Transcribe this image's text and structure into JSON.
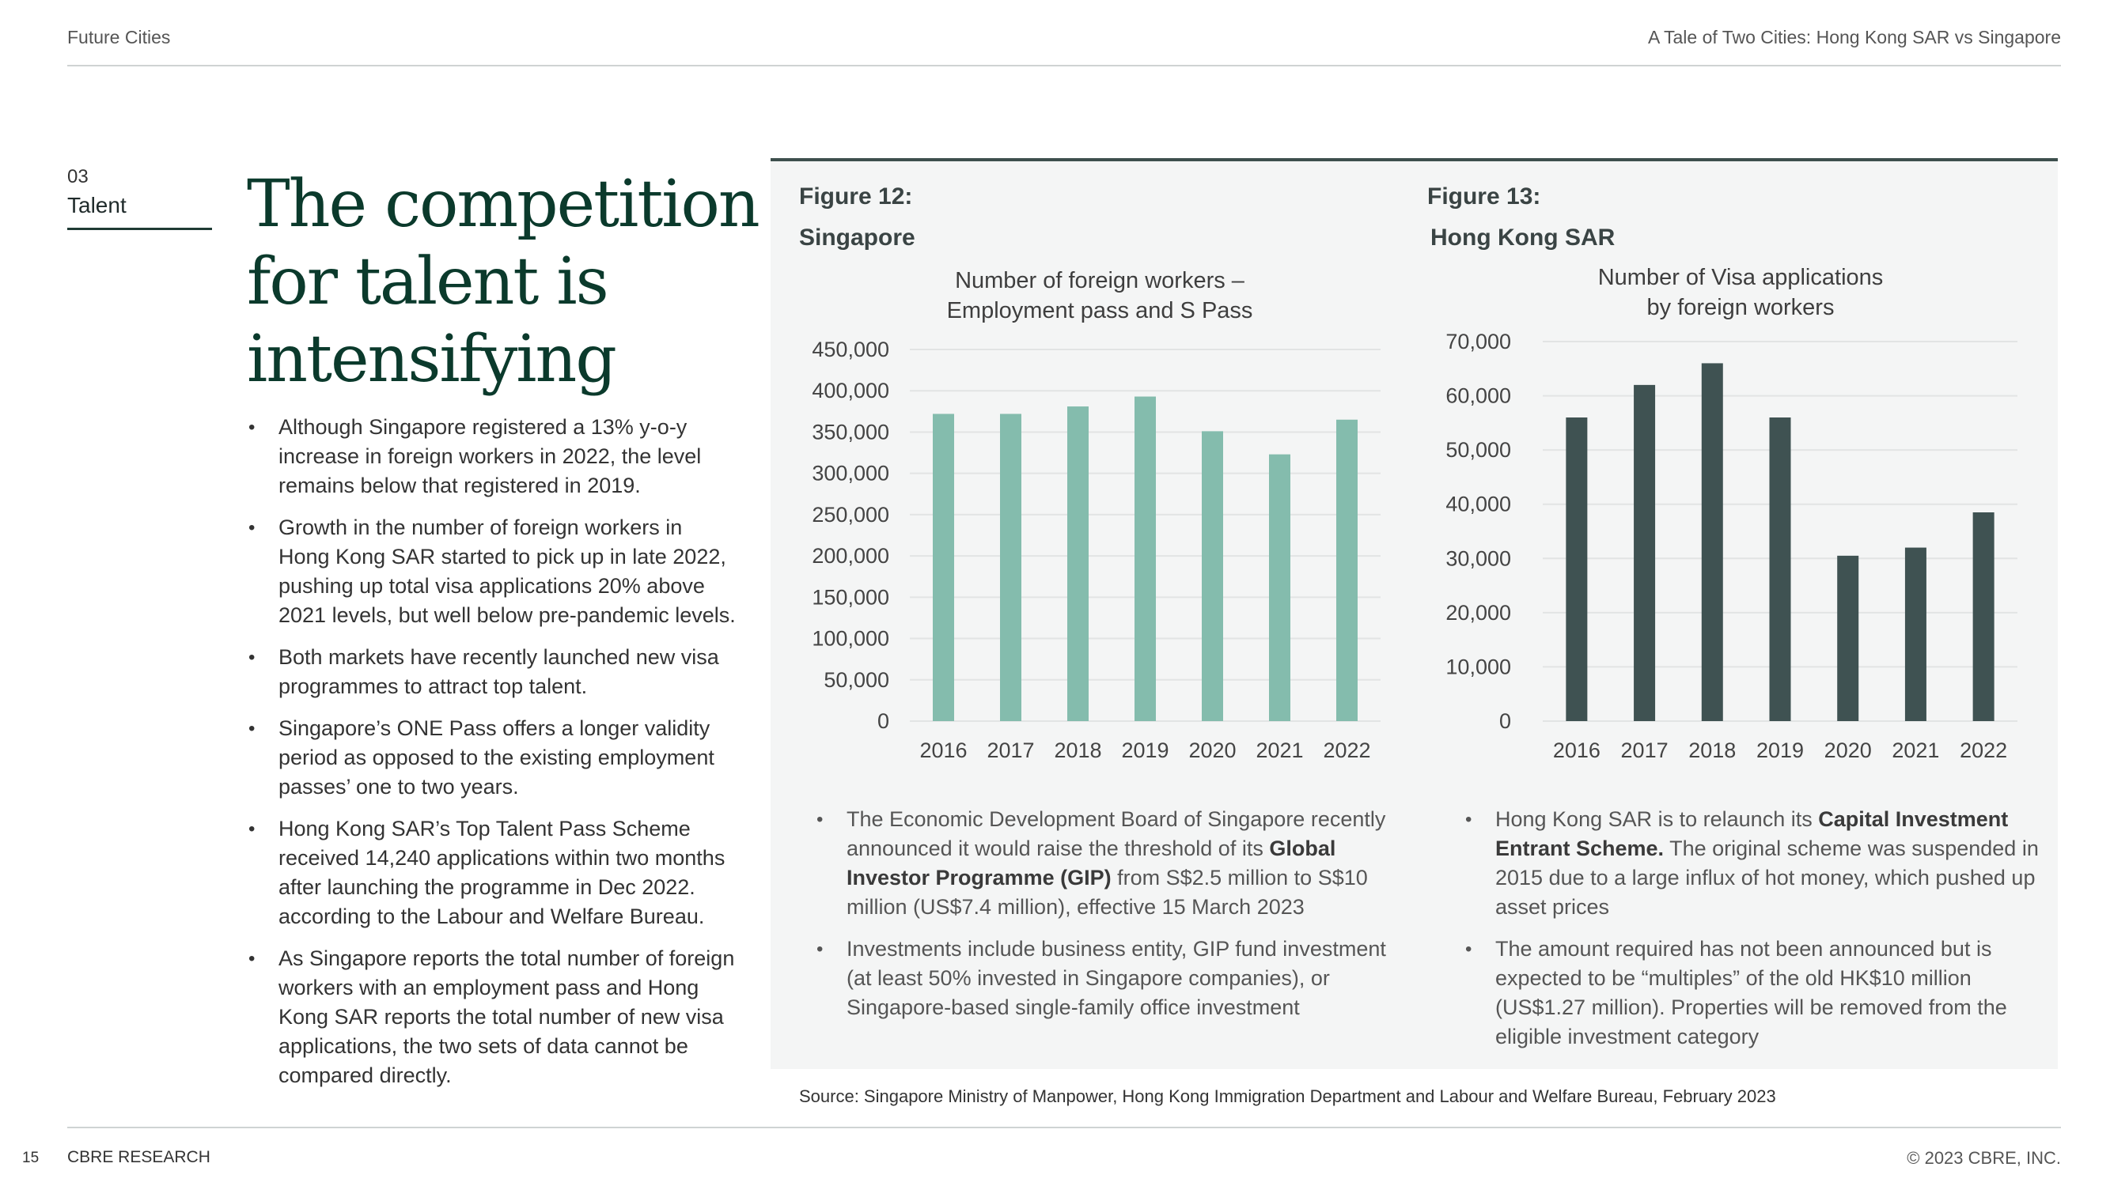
{
  "header": {
    "left": "Future Cities",
    "right": "A Tale of Two Cities: Hong Kong SAR vs Singapore"
  },
  "section": {
    "number": "03",
    "name": "Talent"
  },
  "title_lines": [
    "The competition",
    "for talent is",
    "intensifying"
  ],
  "left_bullets": [
    "Although Singapore registered a 13% y-o-y increase in foreign workers in 2022, the level remains below that registered in 2019.",
    "Growth in the number of foreign workers in Hong Kong SAR started to pick up in late 2022, pushing up total visa applications 20% above 2021 levels, but well below pre-pandemic levels.",
    "Both markets have recently launched new visa programmes to attract top talent.",
    "Singapore’s ONE Pass offers a longer validity period as opposed to the existing employment passes’ one to two years.",
    "Hong Kong SAR’s Top Talent Pass Scheme received 14,240 applications within two months after launching the programme in Dec 2022. according to the Labour and Welfare Bureau.",
    "As Singapore reports the total number of foreign workers with an employment pass and Hong Kong SAR reports the total number of new visa applications, the two sets of data cannot be compared directly."
  ],
  "fig12": {
    "label": "Figure 12:",
    "subtitle": "Singapore"
  },
  "fig13": {
    "label": "Figure 13:",
    "subtitle": "Hong Kong SAR"
  },
  "chart_data": [
    {
      "type": "bar",
      "title": "Number of foreign workers – Employment pass and S Pass",
      "title_lines": [
        "Number of foreign workers –",
        "Employment pass and S Pass"
      ],
      "categories": [
        "2016",
        "2017",
        "2018",
        "2019",
        "2020",
        "2021",
        "2022"
      ],
      "values": [
        372000,
        372000,
        381000,
        393000,
        351000,
        323000,
        365000
      ],
      "ylim": [
        0,
        450000
      ],
      "yticks": [
        0,
        50000,
        100000,
        150000,
        200000,
        250000,
        300000,
        350000,
        400000,
        450000
      ],
      "ytick_labels": [
        "0",
        "50,000",
        "100,000",
        "150,000",
        "200,000",
        "250,000",
        "300,000",
        "350,000",
        "400,000",
        "450,000"
      ],
      "xlabel": "",
      "ylabel": "",
      "grid": true,
      "color": "#84bcad"
    },
    {
      "type": "bar",
      "title": "Number of Visa applications by foreign workers",
      "title_lines": [
        "Number of Visa applications",
        "by foreign workers"
      ],
      "categories": [
        "2016",
        "2017",
        "2018",
        "2019",
        "2020",
        "2021",
        "2022"
      ],
      "values": [
        56000,
        62000,
        66000,
        56000,
        30500,
        32000,
        38500
      ],
      "ylim": [
        0,
        70000
      ],
      "yticks": [
        0,
        10000,
        20000,
        30000,
        40000,
        50000,
        60000,
        70000
      ],
      "ytick_labels": [
        "0",
        "10,000",
        "20,000",
        "30,000",
        "40,000",
        "50,000",
        "60,000",
        "70,000"
      ],
      "xlabel": "",
      "ylabel": "",
      "grid": true,
      "color": "#3f5252"
    }
  ],
  "sg_bullets": [
    [
      {
        "t": "The Economic Development Board of Singapore recently announced it would raise the threshold of its "
      },
      {
        "t": "Global Investor Programme (GIP)",
        "b": true
      },
      {
        "t": " from S$2.5 million to S$10 million (US$7.4 million), effective 15 March 2023"
      }
    ],
    [
      {
        "t": "Investments include business entity, GIP fund investment (at least 50% invested in Singapore companies), or Singapore-based single-family office investment"
      }
    ]
  ],
  "hk_bullets": [
    [
      {
        "t": "Hong Kong SAR is to relaunch its "
      },
      {
        "t": "Capital Investment Entrant Scheme.",
        "b": true
      },
      {
        "t": " The original scheme was suspended in 2015 due to a large influx of hot money, which pushed up asset prices"
      }
    ],
    [
      {
        "t": "The amount required has not been announced but is expected to be “multiples” of the old HK$10 million (US$1.27 million). Properties will be removed from the eligible investment category"
      }
    ]
  ],
  "source": "Source: Singapore Ministry of Manpower, Hong Kong Immigration Department and Labour and Welfare Bureau, February 2023",
  "footer": {
    "page": "15",
    "left": "CBRE RESEARCH",
    "right": "© 2023 CBRE, INC."
  }
}
